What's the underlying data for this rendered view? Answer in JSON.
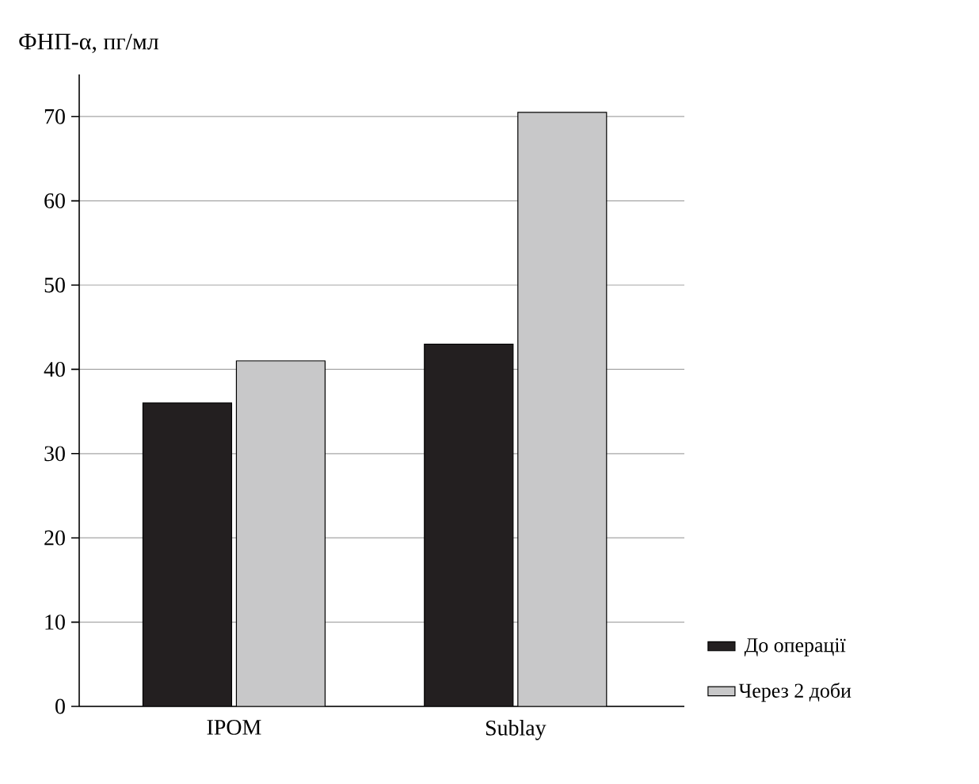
{
  "chart_data": {
    "type": "bar",
    "ylabel": "ФНП-α, пг/мл",
    "categories": [
      "IPOM",
      "Sublay"
    ],
    "series": [
      {
        "name": "До операції",
        "color": "#231f20",
        "values": [
          36,
          43
        ]
      },
      {
        "name": "Через 2 доби",
        "color": "#c8c8c9",
        "values": [
          41,
          70.5
        ]
      }
    ],
    "ylim": [
      0,
      75
    ],
    "yticks": [
      0,
      10,
      20,
      30,
      40,
      50,
      60,
      70
    ],
    "grid": "y",
    "legend": "right"
  }
}
